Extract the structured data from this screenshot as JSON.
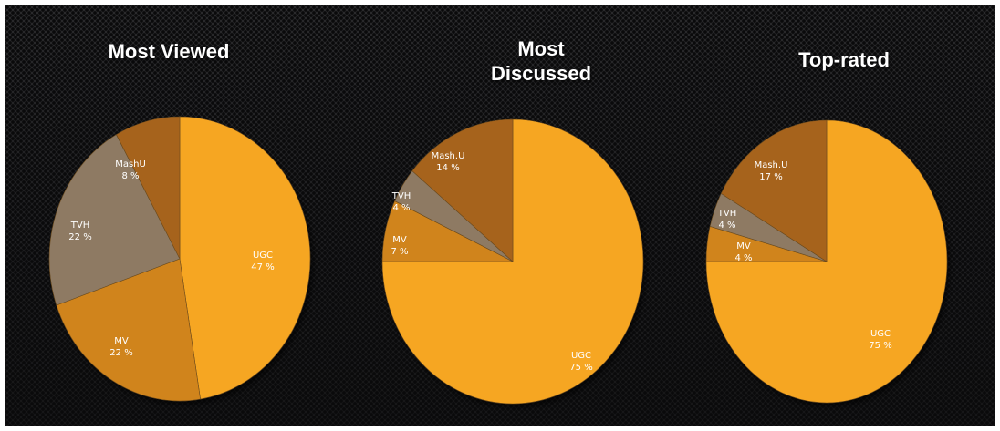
{
  "chart_data": [
    {
      "type": "pie",
      "title": "Most Viewed",
      "slices": [
        {
          "name": "UGC",
          "label": "47 %",
          "value": 47,
          "color": "#f6a623"
        },
        {
          "name": "MV",
          "label": "22 %",
          "value": 22,
          "color": "#d0841b"
        },
        {
          "name": "TVH",
          "label": "22 %",
          "value": 22,
          "color": "#8e7a64"
        },
        {
          "name": "MashU",
          "label": "8 %",
          "value": 8,
          "color": "#a6631c"
        }
      ]
    },
    {
      "type": "pie",
      "title": "Most\nDiscussed",
      "slices": [
        {
          "name": "UGC",
          "label": "75 %",
          "value": 75,
          "color": "#f6a623"
        },
        {
          "name": "MV",
          "label": "7 %",
          "value": 7,
          "color": "#d0841b"
        },
        {
          "name": "TVH",
          "label": "4 %",
          "value": 4,
          "color": "#8e7a64"
        },
        {
          "name": "Mash.U",
          "label": "14 %",
          "value": 14,
          "color": "#a6631c"
        }
      ]
    },
    {
      "type": "pie",
      "title": "Top-rated",
      "slices": [
        {
          "name": "UGC",
          "label": "75 %",
          "value": 75,
          "color": "#f6a623"
        },
        {
          "name": "MV",
          "label": "4 %",
          "value": 4,
          "color": "#d0841b"
        },
        {
          "name": "TVH",
          "label": "4 %",
          "value": 4,
          "color": "#8e7a64"
        },
        {
          "name": "Mash.U",
          "label": "17 %",
          "value": 17,
          "color": "#a6631c"
        }
      ]
    }
  ]
}
